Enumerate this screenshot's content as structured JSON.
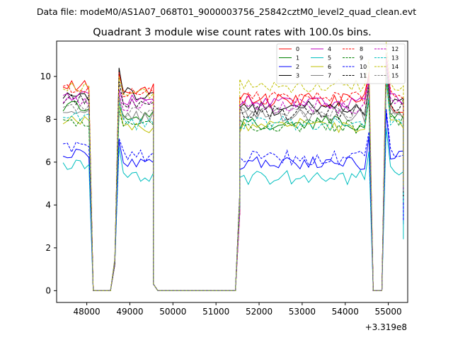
{
  "suptitle": "Data file: modeM0/AS1A07_068T01_9000003756_25842cztM0_level2_quad_clean.evt",
  "chart_data": {
    "type": "line",
    "title": "Quadrant 3 module wise count rates with 100.0s bins.",
    "xlabel": "",
    "ylabel": "",
    "x_offset_label": "+3.319e8",
    "xlim": [
      47300,
      55450
    ],
    "ylim": [
      -0.55,
      11.65
    ],
    "xticks": [
      48000,
      49000,
      50000,
      51000,
      52000,
      53000,
      54000,
      55000
    ],
    "yticks": [
      0,
      2,
      4,
      6,
      8,
      10
    ],
    "legend_position": "top-right",
    "segments": [
      {
        "name": "seg1",
        "x_start": 47450,
        "x_end": 48050,
        "x_step": 100
      },
      {
        "name": "gap1",
        "x_start": 48150,
        "x_end": 48550,
        "x_step": 100
      },
      {
        "name": "seg2",
        "x_start": 48750,
        "x_end": 49550,
        "x_step": 100
      },
      {
        "name": "gap2",
        "x_start": 49650,
        "x_end": 51450,
        "x_step": 100
      },
      {
        "name": "seg3",
        "x_start": 51550,
        "x_end": 54450,
        "x_step": 100
      },
      {
        "name": "gap3",
        "x_start": 54650,
        "x_end": 54850,
        "x_step": 100
      },
      {
        "name": "seg4",
        "x_start": 54950,
        "x_end": 55350,
        "x_step": 100
      }
    ],
    "series": [
      {
        "name": "0",
        "color": "#ff0000",
        "dashed": false,
        "levels": [
          9.6,
          9.4,
          8.9,
          8.6
        ],
        "dips": [
          10.1,
          6.6
        ]
      },
      {
        "name": "1",
        "color": "#008000",
        "dashed": false,
        "levels": [
          8.6,
          8.2,
          7.8,
          8.0
        ],
        "dips": [
          8.6,
          6.0
        ]
      },
      {
        "name": "2",
        "color": "#0000ff",
        "dashed": false,
        "levels": [
          6.4,
          6.0,
          6.0,
          6.4
        ],
        "dips": [
          7.0,
          3.1
        ]
      },
      {
        "name": "3",
        "color": "#000000",
        "dashed": false,
        "levels": [
          9.1,
          9.2,
          8.5,
          8.8
        ],
        "dips": [
          10.4,
          4.5
        ]
      },
      {
        "name": "4",
        "color": "#bf00bf",
        "dashed": false,
        "levels": [
          9.1,
          8.9,
          8.8,
          9.0
        ],
        "dips": [
          9.4,
          5.0
        ]
      },
      {
        "name": "5",
        "color": "#00bfbf",
        "dashed": false,
        "levels": [
          5.9,
          5.3,
          5.3,
          5.6
        ],
        "dips": [
          6.7,
          2.4
        ]
      },
      {
        "name": "6",
        "color": "#bfbf00",
        "dashed": false,
        "levels": [
          8.0,
          7.6,
          7.7,
          7.8
        ],
        "dips": [
          8.7,
          4.2
        ]
      },
      {
        "name": "7",
        "color": "#808080",
        "dashed": false,
        "levels": [
          8.4,
          8.1,
          8.2,
          8.3
        ],
        "dips": [
          9.0,
          4.4
        ]
      },
      {
        "name": "8",
        "color": "#ff0000",
        "dashed": true,
        "levels": [
          9.4,
          9.3,
          9.0,
          9.1
        ],
        "dips": [
          10.2,
          4.8
        ]
      },
      {
        "name": "9",
        "color": "#008000",
        "dashed": true,
        "levels": [
          7.9,
          7.8,
          7.7,
          7.9
        ],
        "dips": [
          8.4,
          4.0
        ]
      },
      {
        "name": "10",
        "color": "#0000ff",
        "dashed": true,
        "levels": [
          6.7,
          6.3,
          6.2,
          6.5
        ],
        "dips": [
          7.1,
          3.3
        ]
      },
      {
        "name": "11",
        "color": "#000000",
        "dashed": true,
        "levels": [
          8.9,
          8.7,
          8.3,
          8.6
        ],
        "dips": [
          9.8,
          4.3
        ]
      },
      {
        "name": "12",
        "color": "#bf00bf",
        "dashed": true,
        "levels": [
          8.8,
          8.7,
          8.6,
          8.7
        ],
        "dips": [
          9.2,
          4.7
        ]
      },
      {
        "name": "13",
        "color": "#00bfbf",
        "dashed": true,
        "levels": [
          8.1,
          7.8,
          7.8,
          8.0
        ],
        "dips": [
          8.8,
          4.1
        ]
      },
      {
        "name": "14",
        "color": "#bfbf00",
        "dashed": true,
        "levels": [
          9.5,
          9.2,
          9.6,
          9.6
        ],
        "dips": [
          10.0,
          4.9
        ]
      },
      {
        "name": "15",
        "color": "#808080",
        "dashed": true,
        "levels": [
          8.5,
          8.3,
          8.4,
          8.4
        ],
        "dips": [
          9.1,
          4.6
        ]
      }
    ]
  }
}
